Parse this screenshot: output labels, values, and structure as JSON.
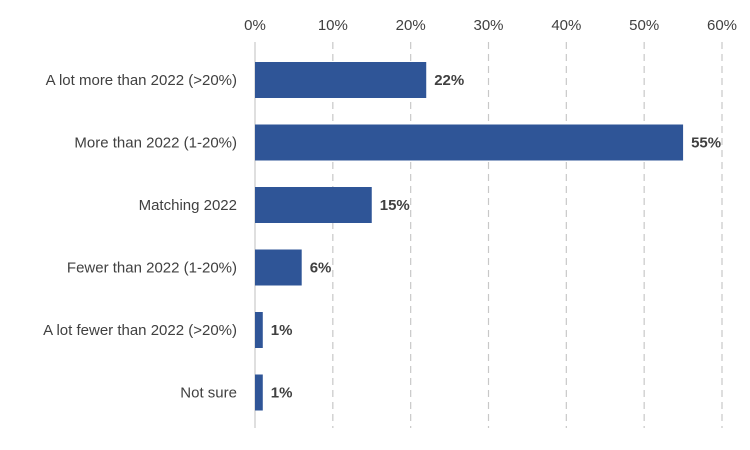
{
  "chart_data": {
    "type": "bar",
    "orientation": "horizontal",
    "title": "",
    "xlabel": "",
    "ylabel": "",
    "categories": [
      "A lot more  than 2022 (>20%)",
      "More  than 2022 (1-20%)",
      "Matching 2022",
      "Fewer than 2022 (1-20%)",
      "A lot fewer than 2022 (>20%)",
      "Not sure"
    ],
    "values": [
      22,
      55,
      15,
      6,
      1,
      1
    ],
    "data_labels": [
      "22%",
      "55%",
      "15%",
      "6%",
      "1%",
      "1%"
    ],
    "xlim": [
      0,
      60
    ],
    "x_ticks": [
      0,
      10,
      20,
      30,
      40,
      50,
      60
    ],
    "x_tick_labels": [
      "0%",
      "10%",
      "20%",
      "30%",
      "40%",
      "50%",
      "60%"
    ],
    "axis_position": "top",
    "grid": true,
    "grid_style": "dashed vertical",
    "legend": "none",
    "bar_color": "#2f5597"
  }
}
